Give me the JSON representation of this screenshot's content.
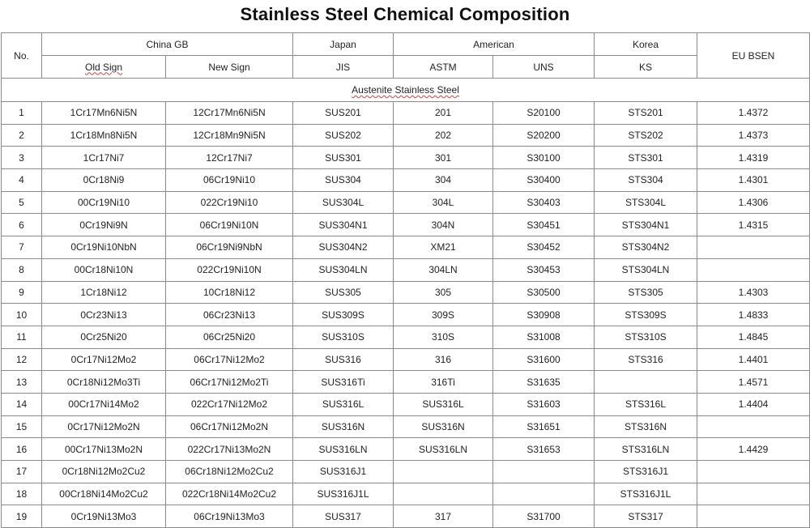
{
  "title": "Stainless Steel Chemical Composition",
  "header": {
    "no": "No.",
    "china_gb": "China GB",
    "japan": "Japan",
    "american": "American",
    "korea": "Korea",
    "eu": "EU BSEN",
    "old_sign": "Old Sign",
    "new_sign": "New Sign",
    "jis": "JIS",
    "astm": "ASTM",
    "uns": "UNS",
    "ks": "KS"
  },
  "section_label": "Austenite Stainless Steel",
  "rows": [
    [
      "1",
      "1Cr17Mn6Ni5N",
      "12Cr17Mn6Ni5N",
      "SUS201",
      "201",
      "S20100",
      "STS201",
      "1.4372"
    ],
    [
      "2",
      "1Cr18Mn8Ni5N",
      "12Cr18Mn9Ni5N",
      "SUS202",
      "202",
      "S20200",
      "STS202",
      "1.4373"
    ],
    [
      "3",
      "1Cr17Ni7",
      "12Cr17Ni7",
      "SUS301",
      "301",
      "S30100",
      "STS301",
      "1.4319"
    ],
    [
      "4",
      "0Cr18Ni9",
      "06Cr19Ni10",
      "SUS304",
      "304",
      "S30400",
      "STS304",
      "1.4301"
    ],
    [
      "5",
      "00Cr19Ni10",
      "022Cr19Ni10",
      "SUS304L",
      "304L",
      "S30403",
      "STS304L",
      "1.4306"
    ],
    [
      "6",
      "0Cr19Ni9N",
      "06Cr19Ni10N",
      "SUS304N1",
      "304N",
      "S30451",
      "STS304N1",
      "1.4315"
    ],
    [
      "7",
      "0Cr19Ni10NbN",
      "06Cr19Ni9NbN",
      "SUS304N2",
      "XM21",
      "S30452",
      "STS304N2",
      ""
    ],
    [
      "8",
      "00Cr18Ni10N",
      "022Cr19Ni10N",
      "SUS304LN",
      "304LN",
      "S30453",
      "STS304LN",
      ""
    ],
    [
      "9",
      "1Cr18Ni12",
      "10Cr18Ni12",
      "SUS305",
      "305",
      "S30500",
      "STS305",
      "1.4303"
    ],
    [
      "10",
      "0Cr23Ni13",
      "06Cr23Ni13",
      "SUS309S",
      "309S",
      "S30908",
      "STS309S",
      "1.4833"
    ],
    [
      "11",
      "0Cr25Ni20",
      "06Cr25Ni20",
      "SUS310S",
      "310S",
      "S31008",
      "STS310S",
      "1.4845"
    ],
    [
      "12",
      "0Cr17Ni12Mo2",
      "06Cr17Ni12Mo2",
      "SUS316",
      "316",
      "S31600",
      "STS316",
      "1.4401"
    ],
    [
      "13",
      "0Cr18Ni12Mo3Ti",
      "06Cr17Ni12Mo2Ti",
      "SUS316Ti",
      "316Ti",
      "S31635",
      "",
      "1.4571"
    ],
    [
      "14",
      "00Cr17Ni14Mo2",
      "022Cr17Ni12Mo2",
      "SUS316L",
      "SUS316L",
      "S31603",
      "STS316L",
      "1.4404"
    ],
    [
      "15",
      "0Cr17Ni12Mo2N",
      "06Cr17Ni12Mo2N",
      "SUS316N",
      "SUS316N",
      "S31651",
      "STS316N",
      ""
    ],
    [
      "16",
      "00Cr17Ni13Mo2N",
      "022Cr17Ni13Mo2N",
      "SUS316LN",
      "SUS316LN",
      "S31653",
      "STS316LN",
      "1.4429"
    ],
    [
      "17",
      "0Cr18Ni12Mo2Cu2",
      "06Cr18Ni12Mo2Cu2",
      "SUS316J1",
      "",
      "",
      "STS316J1",
      ""
    ],
    [
      "18",
      "00Cr18Ni14Mo2Cu2",
      "022Cr18Ni14Mo2Cu2",
      "SUS316J1L",
      "",
      "",
      "STS316J1L",
      ""
    ],
    [
      "19",
      "0Cr19Ni13Mo3",
      "06Cr19Ni13Mo3",
      "SUS317",
      "317",
      "S31700",
      "STS317",
      ""
    ]
  ]
}
